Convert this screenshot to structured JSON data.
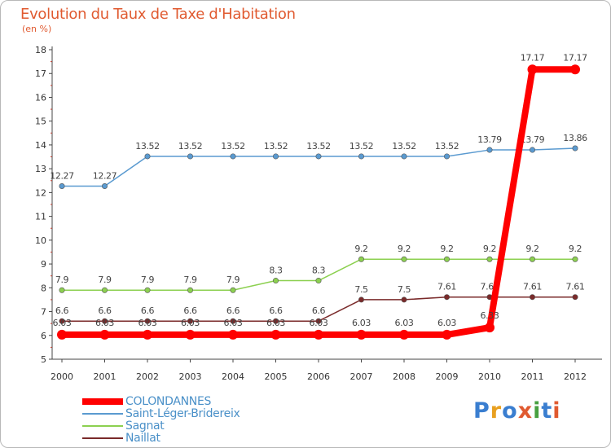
{
  "header": {
    "title": "Evolution du Taux de Taxe d'Habitation",
    "subtitle": "(en %)"
  },
  "logo": {
    "text": "Proxiti",
    "colors": [
      "#3a7ed0",
      "#e8a020",
      "#3a7ed0",
      "#e05a30",
      "#48a040",
      "#3a7ed0",
      "#e05a30"
    ]
  },
  "chart_data": {
    "type": "line",
    "title": "Evolution du Taux de Taxe d'Habitation",
    "ylabel": "(en %)",
    "xlabel": "",
    "ylim": [
      5,
      18
    ],
    "yticks": [
      "5",
      "6",
      "7",
      "8",
      "9",
      "10",
      "11",
      "12",
      "13",
      "14",
      "15",
      "16",
      "17",
      "18"
    ],
    "categories": [
      "2000",
      "2001",
      "2002",
      "2003",
      "2004",
      "2005",
      "2006",
      "2007",
      "2008",
      "2009",
      "2010",
      "2011",
      "2012"
    ],
    "grid": false,
    "legend_position": "bottom-left",
    "series": [
      {
        "name": "Naillat",
        "color": "#7a2a2a",
        "width": "thin",
        "values": [
          6.6,
          6.6,
          6.6,
          6.6,
          6.6,
          6.6,
          6.6,
          7.5,
          7.5,
          7.61,
          7.61,
          7.61,
          7.61
        ],
        "labels": [
          "6.6",
          "6.6",
          "6.6",
          "6.6",
          "6.6",
          "6.6",
          "6.6",
          "7.5",
          "7.5",
          "7.61",
          "7.61",
          "7.61",
          "7.61"
        ]
      },
      {
        "name": "Sagnat",
        "color": "#8cd050",
        "width": "thin",
        "values": [
          7.9,
          7.9,
          7.9,
          7.9,
          7.9,
          8.3,
          8.3,
          9.2,
          9.2,
          9.2,
          9.2,
          9.2,
          9.2
        ],
        "labels": [
          "7.9",
          "7.9",
          "7.9",
          "7.9",
          "7.9",
          "8.3",
          "8.3",
          "9.2",
          "9.2",
          "9.2",
          "9.2",
          "9.2",
          "9.2"
        ]
      },
      {
        "name": "Saint-Léger-Bridereix",
        "color": "#5a9ad0",
        "width": "thin",
        "values": [
          12.27,
          12.27,
          13.52,
          13.52,
          13.52,
          13.52,
          13.52,
          13.52,
          13.52,
          13.52,
          13.79,
          13.79,
          13.86
        ],
        "labels": [
          "12.27",
          "12.27",
          "13.52",
          "13.52",
          "13.52",
          "13.52",
          "13.52",
          "13.52",
          "13.52",
          "13.52",
          "13.79",
          "13.79",
          "13.86"
        ]
      },
      {
        "name": "COLONDANNES",
        "color": "#ff0000",
        "width": "thick",
        "values": [
          6.03,
          6.03,
          6.03,
          6.03,
          6.03,
          6.03,
          6.03,
          6.03,
          6.03,
          6.03,
          6.33,
          17.17,
          17.17
        ],
        "labels": [
          "6.03",
          "6.03",
          "6.03",
          "6.03",
          "6.03",
          "6.03",
          "6.03",
          "6.03",
          "6.03",
          "6.03",
          "6.33",
          "17.17",
          "17.17"
        ]
      }
    ],
    "legend_order": [
      "COLONDANNES",
      "Saint-Léger-Bridereix",
      "Sagnat",
      "Naillat"
    ]
  }
}
